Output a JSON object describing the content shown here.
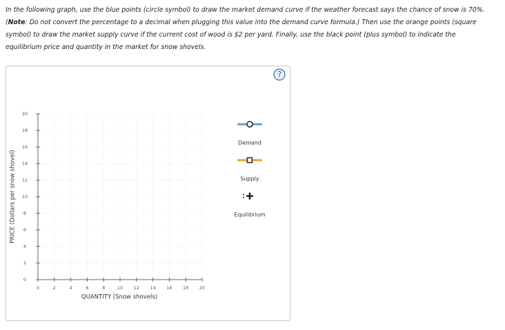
{
  "instructions": {
    "intro": "In the following graph, use the blue points (circle symbol) to draw the market demand curve if the weather forecast says the chance of snow is 70%.",
    "note_open": "(",
    "note_label": "Note",
    "note_text": ": Do not convert the percentage to a decimal when plugging this value into the demand curve formula.) Then use the orange points (square symbol) to draw the market supply curve if the current cost of wood is $2 per yard. Finally, use the black point (plus symbol) to indicate the equilibrium price and quantity in the market for snow shovels."
  },
  "graph": {
    "xlabel": "QUANTITY (Snow shovels)",
    "ylabel": "PRICE (Dollars per snow shovel)",
    "xlim": [
      0,
      20
    ],
    "ylim": [
      0,
      20
    ],
    "xticks": [
      0,
      2,
      4,
      6,
      8,
      10,
      12,
      14,
      16,
      18,
      20
    ],
    "yticks": [
      0,
      2,
      4,
      6,
      8,
      10,
      12,
      14,
      16,
      18,
      20
    ],
    "grid": true
  },
  "legend": [
    {
      "label": "Demand",
      "color": "#6a9ccf"
    },
    {
      "label": "Supply",
      "color": "#f0a030"
    },
    {
      "label": "Equilibrium",
      "color": "#222222"
    }
  ],
  "help": "?"
}
